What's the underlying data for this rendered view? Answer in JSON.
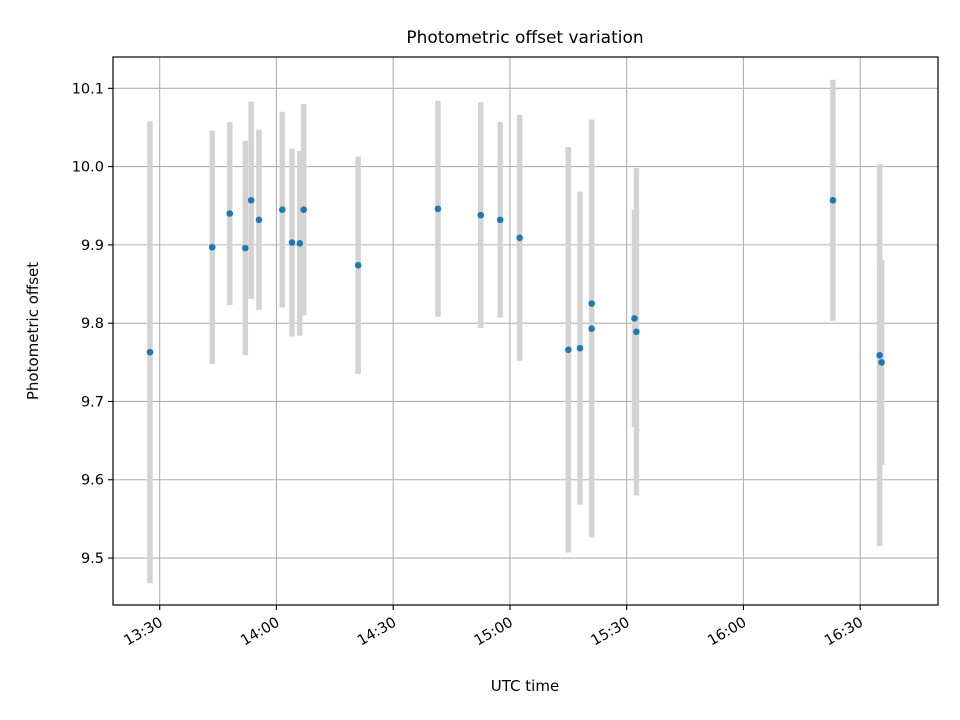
{
  "chart_data": {
    "type": "scatter",
    "title": "Photometric offset variation",
    "xlabel": "UTC time",
    "ylabel": "Photometric offset",
    "x_is_time": true,
    "xlim": [
      "13:18",
      "16:50"
    ],
    "ylim": [
      9.44,
      10.14
    ],
    "x_ticks": [
      "13:30",
      "14:00",
      "14:30",
      "15:00",
      "15:30",
      "16:00",
      "16:30"
    ],
    "y_ticks": [
      9.5,
      9.6,
      9.7,
      9.8,
      9.9,
      10.0,
      10.1
    ],
    "y_tick_labels": [
      "9.5",
      "9.6",
      "9.7",
      "9.8",
      "9.9",
      "10.0",
      "10.1"
    ],
    "grid": true,
    "point_color": "#1f77b4",
    "errorbar_color": "#d3d3d3",
    "points": [
      {
        "t": "13:27.5",
        "y": 9.763,
        "err": 0.295
      },
      {
        "t": "13:43.5",
        "y": 9.897,
        "err": 0.149
      },
      {
        "t": "13:48",
        "y": 9.94,
        "err": 0.117
      },
      {
        "t": "13:52",
        "y": 9.896,
        "err": 0.137
      },
      {
        "t": "13:53.5",
        "y": 9.957,
        "err": 0.126
      },
      {
        "t": "13:55.5",
        "y": 9.932,
        "err": 0.115
      },
      {
        "t": "14:01.5",
        "y": 9.945,
        "err": 0.125
      },
      {
        "t": "14:04",
        "y": 9.903,
        "err": 0.12
      },
      {
        "t": "14:06",
        "y": 9.902,
        "err": 0.118
      },
      {
        "t": "14:07",
        "y": 9.945,
        "err": 0.135
      },
      {
        "t": "14:21",
        "y": 9.874,
        "err": 0.139
      },
      {
        "t": "14:41.5",
        "y": 9.946,
        "err": 0.138
      },
      {
        "t": "14:52.5",
        "y": 9.938,
        "err": 0.144
      },
      {
        "t": "14:57.5",
        "y": 9.932,
        "err": 0.125
      },
      {
        "t": "15:02.5",
        "y": 9.909,
        "err": 0.157
      },
      {
        "t": "15:15",
        "y": 9.766,
        "err": 0.259
      },
      {
        "t": "15:18",
        "y": 9.768,
        "err": 0.2
      },
      {
        "t": "15:21",
        "y": 9.825,
        "err": 0.0
      },
      {
        "t": "15:21",
        "y": 9.793,
        "err": 0.267
      },
      {
        "t": "15:32",
        "y": 9.806,
        "err": 0.139
      },
      {
        "t": "15:32.5",
        "y": 9.789,
        "err": 0.209
      },
      {
        "t": "16:23",
        "y": 9.957,
        "err": 0.154
      },
      {
        "t": "16:35",
        "y": 9.759,
        "err": 0.244
      },
      {
        "t": "16:35.5",
        "y": 9.75,
        "err": 0.131
      }
    ]
  }
}
